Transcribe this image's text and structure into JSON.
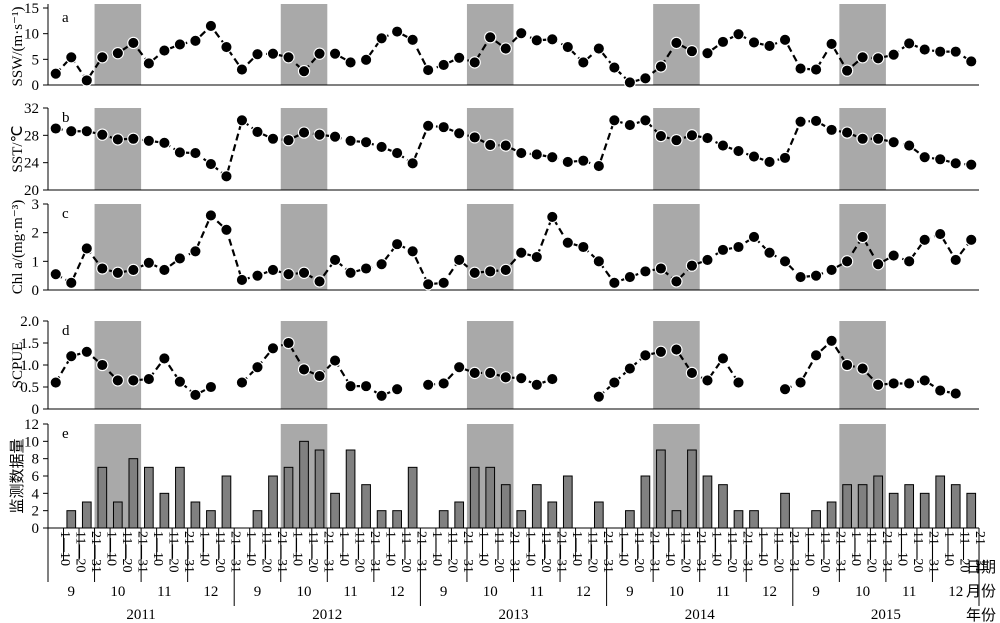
{
  "colors": {
    "shade": "#a9a9a9",
    "bar": "#808080",
    "ink": "#000000"
  },
  "x_axis": {
    "day_labels": [
      "1—10",
      "11—20",
      "21—31"
    ],
    "months": [
      "9",
      "10",
      "11",
      "12"
    ],
    "years": [
      "2011",
      "2012",
      "2013",
      "2014",
      "2015"
    ],
    "right_labels": [
      "日期",
      "月份",
      "年份"
    ]
  },
  "chart_data": {
    "type": "line",
    "shaded_periods": [
      "2011-10",
      "2012-10",
      "2013-10",
      "2014-10",
      "2015-10"
    ],
    "panels": [
      {
        "id": "a",
        "letter": "a",
        "type": "line",
        "ylabel": "SSW/(m·s⁻¹)",
        "ylim": [
          0,
          15
        ],
        "yticks": [
          0,
          5,
          10,
          15
        ],
        "tick_labels": [
          "0",
          "5",
          "10",
          "15"
        ],
        "values": [
          2.2,
          5.4,
          0.9,
          5.4,
          6.2,
          8.2,
          4.2,
          6.7,
          7.9,
          8.6,
          11.5,
          7.4,
          3.0,
          6.0,
          6.1,
          5.4,
          2.7,
          6.1,
          6.1,
          4.4,
          4.9,
          9.1,
          10.4,
          8.8,
          2.9,
          3.9,
          5.3,
          4.4,
          9.3,
          7.1,
          10.1,
          8.7,
          8.9,
          7.4,
          4.4,
          7.1,
          3.4,
          0.5,
          1.3,
          3.6,
          8.2,
          6.6,
          6.2,
          8.4,
          9.9,
          8.3,
          7.6,
          8.8,
          3.2,
          3.0,
          8.0,
          2.8,
          5.4,
          5.2,
          5.9,
          8.1,
          6.9,
          6.5,
          6.5,
          4.6
        ]
      },
      {
        "id": "b",
        "letter": "b",
        "type": "line",
        "ylabel": "SST/℃",
        "ylim": [
          20,
          32
        ],
        "yticks": [
          20,
          24,
          28,
          32
        ],
        "tick_labels": [
          "20",
          "24",
          "28",
          "32"
        ],
        "values": [
          29.0,
          28.6,
          28.6,
          28.1,
          27.4,
          27.5,
          27.2,
          26.9,
          25.5,
          25.4,
          23.8,
          22.0,
          30.2,
          28.5,
          27.5,
          27.3,
          28.4,
          28.1,
          27.8,
          27.2,
          27.0,
          26.3,
          25.4,
          23.9,
          29.4,
          29.2,
          28.3,
          27.7,
          26.6,
          26.5,
          25.4,
          25.2,
          24.8,
          24.1,
          24.3,
          23.5,
          30.2,
          29.5,
          30.2,
          27.9,
          27.3,
          28.0,
          27.6,
          26.5,
          25.7,
          24.9,
          24.1,
          24.7,
          30.0,
          30.1,
          28.8,
          28.4,
          27.5,
          27.5,
          27.0,
          26.5,
          24.8,
          24.5,
          23.9,
          23.7
        ]
      },
      {
        "id": "c",
        "letter": "c",
        "type": "line",
        "ylabel": "Chl a/(mg·m⁻³)",
        "ylim": [
          0,
          3
        ],
        "yticks": [
          0,
          1,
          2,
          3
        ],
        "tick_labels": [
          "0",
          "1",
          "2",
          "3"
        ],
        "values": [
          0.55,
          0.25,
          1.45,
          0.75,
          0.6,
          0.7,
          0.95,
          0.7,
          1.1,
          1.35,
          2.6,
          2.1,
          0.35,
          0.5,
          0.7,
          0.55,
          0.6,
          0.3,
          1.05,
          0.6,
          0.75,
          0.9,
          1.6,
          1.35,
          0.2,
          0.25,
          1.05,
          0.6,
          0.65,
          0.7,
          1.3,
          1.15,
          2.55,
          1.65,
          1.5,
          1.0,
          0.25,
          0.45,
          0.65,
          0.75,
          0.3,
          0.85,
          1.05,
          1.4,
          1.5,
          1.85,
          1.3,
          1.0,
          0.45,
          0.5,
          0.7,
          1.0,
          1.85,
          0.9,
          1.2,
          1.0,
          1.75,
          1.95,
          1.05,
          1.75
        ]
      },
      {
        "id": "d",
        "letter": "d",
        "type": "line",
        "ylabel": "SCPUE",
        "ylim": [
          0,
          2.0
        ],
        "yticks": [
          0,
          0.5,
          1.0,
          1.5,
          2.0
        ],
        "tick_labels": [
          "0",
          "0.5",
          "1.0",
          "1.5",
          "2.0"
        ],
        "values": [
          0.6,
          1.2,
          1.3,
          1.0,
          0.65,
          0.65,
          0.68,
          1.15,
          0.62,
          0.32,
          0.5,
          null,
          0.6,
          0.95,
          1.38,
          1.5,
          0.9,
          0.75,
          1.1,
          0.52,
          0.52,
          0.3,
          0.45,
          null,
          0.55,
          0.58,
          0.95,
          0.82,
          0.82,
          0.72,
          0.7,
          0.55,
          0.68,
          null,
          null,
          0.28,
          0.6,
          0.92,
          1.22,
          1.3,
          1.35,
          0.82,
          0.65,
          1.15,
          0.6,
          null,
          null,
          0.45,
          0.6,
          1.22,
          1.55,
          1.0,
          0.92,
          0.55,
          0.58,
          0.58,
          0.65,
          0.42,
          0.35,
          null
        ]
      },
      {
        "id": "e",
        "letter": "e",
        "type": "bar",
        "ylabel": "监测数据量",
        "ylim": [
          0,
          12
        ],
        "yticks": [
          0,
          2,
          4,
          6,
          8,
          10,
          12
        ],
        "tick_labels": [
          "0",
          "2",
          "4",
          "6",
          "8",
          "10",
          "12"
        ],
        "values": [
          0,
          2,
          3,
          7,
          3,
          8,
          7,
          4,
          7,
          3,
          2,
          6,
          0,
          2,
          6,
          7,
          10,
          9,
          4,
          9,
          5,
          2,
          2,
          7,
          0,
          2,
          3,
          7,
          7,
          5,
          2,
          5,
          3,
          6,
          0,
          3,
          0,
          2,
          6,
          9,
          2,
          9,
          6,
          5,
          2,
          2,
          0,
          4,
          0,
          2,
          3,
          5,
          5,
          6,
          4,
          5,
          4,
          6,
          5,
          4
        ]
      }
    ]
  }
}
